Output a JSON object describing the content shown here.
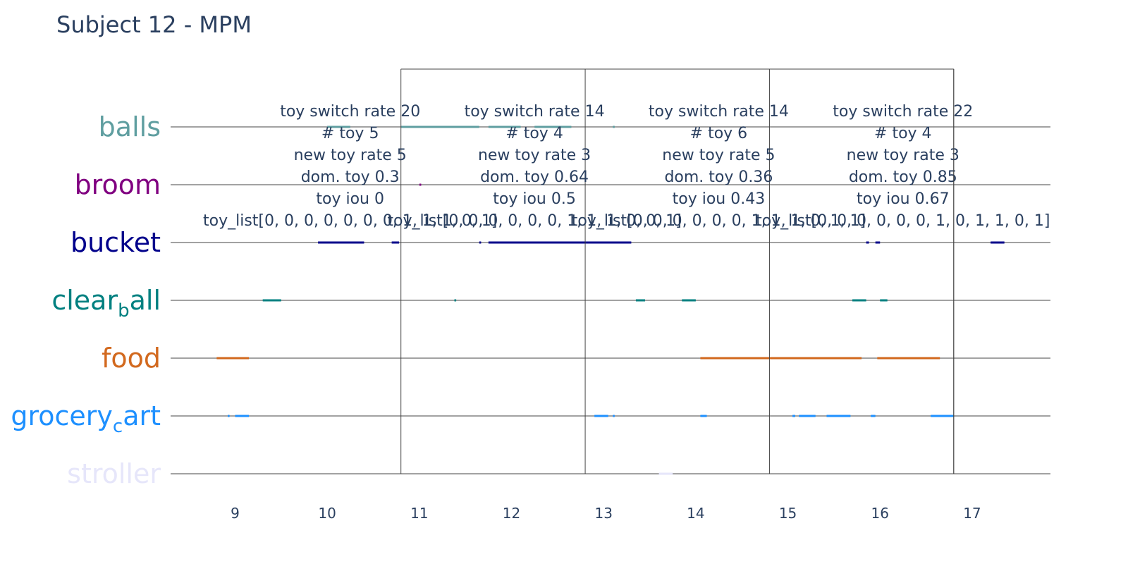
{
  "chart_data": {
    "type": "timeline",
    "title": "Subject 12 - MPM",
    "xlabel": "",
    "ylabel": "",
    "xlim": [
      8.3,
      17.85
    ],
    "x_ticks": [
      9,
      10,
      11,
      12,
      13,
      14,
      15,
      16,
      17
    ],
    "grid": true,
    "categories": [
      {
        "label": "balls",
        "color": "#5f9ea0",
        "segments": [
          [
            10.0,
            10.25
          ],
          [
            10.8,
            11.65
          ],
          [
            11.75,
            12.1
          ],
          [
            12.25,
            12.65
          ],
          [
            13.1,
            13.12
          ]
        ]
      },
      {
        "label": "broom",
        "color": "#800080",
        "segments": [
          [
            11.0,
            11.02
          ]
        ]
      },
      {
        "label": "bucket",
        "color": "#00008b",
        "segments": [
          [
            9.9,
            10.4
          ],
          [
            10.7,
            10.78
          ],
          [
            11.65,
            11.67
          ],
          [
            11.75,
            13.3
          ],
          [
            15.85,
            15.88
          ],
          [
            15.95,
            16.0
          ],
          [
            17.2,
            17.35
          ]
        ]
      },
      {
        "label": "clear_ball",
        "label_main": "clear",
        "label_sub": "b",
        "label_rest": "all",
        "color": "#008080",
        "segments": [
          [
            9.3,
            9.5
          ],
          [
            11.38,
            11.4
          ],
          [
            13.35,
            13.45
          ],
          [
            13.85,
            14.0
          ],
          [
            15.7,
            15.85
          ],
          [
            16.0,
            16.08
          ]
        ]
      },
      {
        "label": "food",
        "color": "#d2691e",
        "segments": [
          [
            8.8,
            9.15
          ],
          [
            14.05,
            15.8
          ],
          [
            15.97,
            16.65
          ]
        ]
      },
      {
        "label": "grocery_cart",
        "label_main": "grocery",
        "label_sub": "c",
        "label_rest": "art",
        "color": "#1e90ff",
        "segments": [
          [
            8.92,
            8.94
          ],
          [
            9.0,
            9.15
          ],
          [
            12.9,
            13.05
          ],
          [
            13.1,
            13.12
          ],
          [
            14.05,
            14.12
          ],
          [
            15.05,
            15.08
          ],
          [
            15.12,
            15.3
          ],
          [
            15.42,
            15.68
          ],
          [
            15.9,
            15.95
          ],
          [
            16.55,
            16.8
          ]
        ]
      },
      {
        "label": "stroller",
        "color": "#e6e6fa",
        "segments": [
          [
            13.6,
            13.75
          ]
        ]
      }
    ],
    "windows": [
      {
        "x0": 10.8,
        "x1": 12.8,
        "lines": [
          "toy switch rate 20",
          "# toy 5",
          "new toy rate 5",
          "dom. toy 0.3",
          "toy iou 0",
          "toy_list[0, 0, 0, 0, 0, 0, 0, 1, 1, 1, 0, 1]"
        ]
      },
      {
        "x0": 12.8,
        "x1": 14.8,
        "lines": [
          "toy switch rate 14",
          "# toy 4",
          "new toy rate 3",
          "dom. toy 0.64",
          "toy iou 0.5",
          "toy_list[0, 0, 0, 0, 0, 0, 1, 1, 1, 0, 0, 1]"
        ]
      },
      {
        "x0": 14.8,
        "x1": 16.8,
        "lines": [
          "toy switch rate 14",
          "# toy 6",
          "new toy rate 5",
          "dom. toy 0.36",
          "toy iou 0.43",
          "toy_list[0, 0, 0, 0, 0, 0, 1, 1, 1, 0, 1, 1]"
        ]
      },
      {
        "x0": 16.8,
        "x1": 18.8,
        "lines": [
          "toy switch rate 22",
          "# toy 4",
          "new toy rate 3",
          "dom. toy 0.85",
          "toy iou 0.67",
          "toy_list[0, 0, 0, 0, 0, 0, 1, 0, 1, 1, 0, 1]"
        ]
      }
    ]
  }
}
